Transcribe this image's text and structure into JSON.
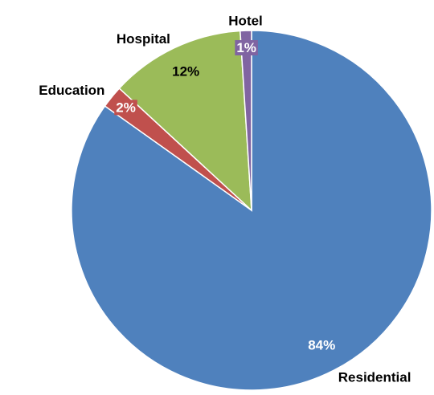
{
  "chart_data": {
    "type": "pie",
    "categories": [
      "Residential",
      "Education",
      "Hospital",
      "Hotel"
    ],
    "values": [
      84,
      2,
      12,
      1
    ],
    "value_labels": [
      "84%",
      "2%",
      "12%",
      "1%"
    ],
    "colors": [
      "#4f81bd",
      "#c0504d",
      "#9bbb59",
      "#8064a2"
    ]
  }
}
